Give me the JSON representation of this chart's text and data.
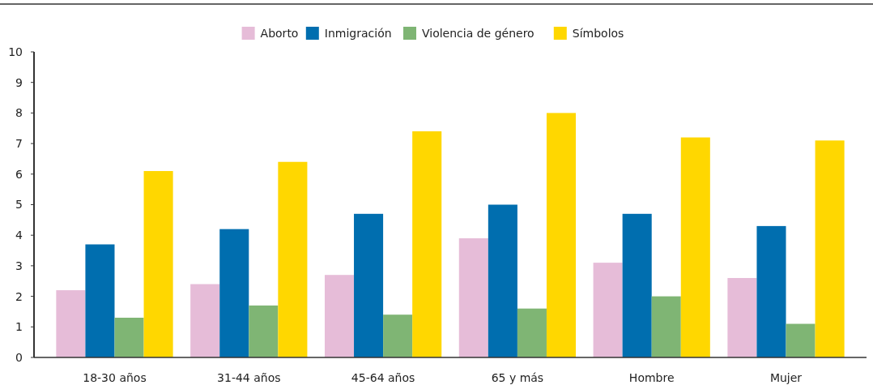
{
  "chart_data": {
    "type": "bar",
    "categories": [
      "18-30 años",
      "31-44 años",
      "45-64 años",
      "65 y más",
      "Hombre",
      "Mujer"
    ],
    "series": [
      {
        "name": "Aborto",
        "color": "#e6bcd8",
        "values": [
          2.2,
          2.4,
          2.7,
          3.9,
          3.1,
          2.6
        ]
      },
      {
        "name": "Inmigración",
        "color": "#006eaf",
        "values": [
          3.7,
          4.2,
          4.7,
          5.0,
          4.7,
          4.3
        ]
      },
      {
        "name": "Violencia de género",
        "color": "#7fb574",
        "values": [
          1.3,
          1.7,
          1.4,
          1.6,
          2.0,
          1.1
        ]
      },
      {
        "name": "Símbolos",
        "color": "#ffd700",
        "values": [
          6.1,
          6.4,
          7.4,
          8.0,
          7.2,
          7.1
        ]
      }
    ],
    "ylim": [
      0,
      10
    ],
    "yticks": [
      0,
      1,
      2,
      3,
      4,
      5,
      6,
      7,
      8,
      9,
      10
    ],
    "grid": false,
    "legend": "top"
  }
}
